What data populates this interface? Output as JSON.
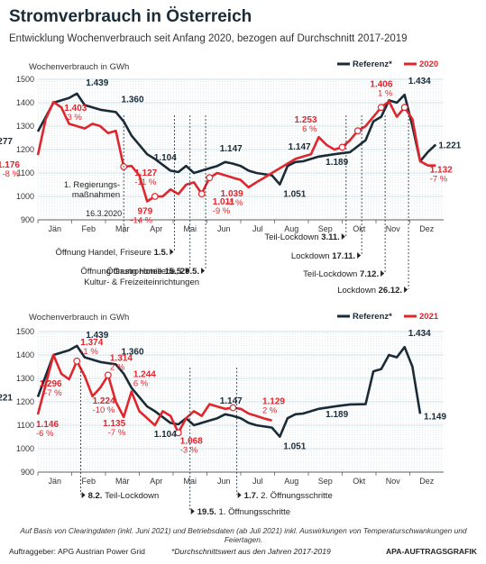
{
  "title": "Stromverbrauch in Österreich",
  "subtitle": "Entwicklung Wochenverbrauch seit Anfang 2020, bezogen auf Durchschnitt 2017-2019",
  "colors": {
    "reference": "#1a2b38",
    "actual": "#e0262d",
    "grid": "#c8dde6",
    "event": "#1a2b38"
  },
  "footer": {
    "note": "Auf Basis von Clearingdaten (inkl. Juni 2021) und Betriebsdaten (ab Juli 2021) inkl. Auswirkungen von Temperaturschwankungen und Feiertagen.",
    "client": "Auftraggeber: APG Austrian Power Grid",
    "reference_note": "*Durchschnittswert aus den Jahren 2017-2019",
    "agency": "APA-AUFTRAGSGRAFIK"
  },
  "chart_data": [
    {
      "type": "line",
      "ylabel": "Wochenverbrauch in GWh",
      "ylim": [
        900,
        1500
      ],
      "yticks": [
        900,
        1000,
        1100,
        1200,
        1300,
        1400,
        1500
      ],
      "xlim": [
        0,
        52
      ],
      "categories": [
        "Jän",
        "Feb",
        "Mär",
        "Apr",
        "Mai",
        "Jun",
        "Jul",
        "Aug",
        "Sep",
        "Okt",
        "Nov",
        "Dez"
      ],
      "grid": true,
      "legend_position": "top-right",
      "series": [
        {
          "name": "Referenz*",
          "x": [
            0,
            2,
            4,
            5,
            6,
            8,
            10,
            11,
            12,
            14,
            15,
            17,
            18,
            19,
            20,
            21,
            22,
            23,
            24,
            25,
            26,
            27,
            28,
            30,
            31,
            32,
            33,
            34,
            35,
            36,
            38,
            40,
            42,
            43,
            44,
            45,
            46,
            47,
            48,
            49,
            50,
            51
          ],
          "values": [
            1277,
            1400,
            1420,
            1439,
            1390,
            1370,
            1360,
            1320,
            1260,
            1180,
            1160,
            1110,
            1104,
            1130,
            1100,
            1110,
            1120,
            1130,
            1147,
            1140,
            1130,
            1110,
            1100,
            1090,
            1051,
            1130,
            1147,
            1150,
            1160,
            1170,
            1180,
            1189,
            1240,
            1320,
            1340,
            1410,
            1400,
            1434,
            1300,
            1150,
            1190,
            1221
          ]
        },
        {
          "name": "2020",
          "x": [
            0,
            1,
            2,
            3,
            4,
            5,
            6,
            7,
            8,
            9,
            10,
            11,
            12,
            13,
            14,
            15,
            16,
            17,
            18,
            19,
            20,
            21,
            22,
            23,
            24,
            25,
            26,
            27,
            28,
            29,
            30,
            31,
            32,
            33,
            34,
            35,
            36,
            37,
            38,
            39,
            40,
            41,
            42,
            43,
            44,
            45,
            46,
            47,
            48,
            49,
            50,
            51
          ],
          "values": [
            1176,
            1330,
            1403,
            1380,
            1310,
            1300,
            1290,
            1310,
            1300,
            1270,
            1280,
            1127,
            1130,
            1090,
            979,
            1000,
            1000,
            1030,
            1010,
            1050,
            1060,
            1011,
            1080,
            1100,
            1090,
            1080,
            1070,
            1039,
            1060,
            1080,
            1100,
            1120,
            1140,
            1160,
            1170,
            1180,
            1253,
            1220,
            1200,
            1210,
            1240,
            1280,
            1300,
            1340,
            1380,
            1406,
            1340,
            1380,
            1330,
            1150,
            1132,
            1132
          ]
        }
      ],
      "value_labels": [
        {
          "series": "Referenz*",
          "text": "1.277"
        },
        {
          "series": "Referenz*",
          "text": "1.439"
        },
        {
          "series": "Referenz*",
          "text": "1.360"
        },
        {
          "series": "Referenz*",
          "text": "1.104"
        },
        {
          "series": "Referenz*",
          "text": "1.147"
        },
        {
          "series": "Referenz*",
          "text": "1.147"
        },
        {
          "series": "Referenz*",
          "text": "1.051"
        },
        {
          "series": "Referenz*",
          "text": "1.189"
        },
        {
          "series": "Referenz*",
          "text": "1.434"
        },
        {
          "series": "Referenz*",
          "text": "1.221"
        },
        {
          "series": "2020",
          "text": "1.176",
          "pct": "-8 %"
        },
        {
          "series": "2020",
          "text": "1.403",
          "pct": "-3 %"
        },
        {
          "series": "2020",
          "text": "1.127",
          "pct": "-11 %"
        },
        {
          "series": "2020",
          "text": "979",
          "pct": "-14 %"
        },
        {
          "series": "2020",
          "text": "1.011",
          "pct": "-9 %"
        },
        {
          "series": "2020",
          "text": "1.039",
          "pct": "-4 %"
        },
        {
          "series": "2020",
          "text": "1.253",
          "pct": "6 %"
        },
        {
          "series": "2020",
          "text": "1.406",
          "pct": "1 %"
        },
        {
          "series": "2020",
          "text": "1.132",
          "pct": "-7 %"
        }
      ],
      "annotations": [
        {
          "text": "1. Regierungs-",
          "text2": "maßnahmen",
          "date": "16.3.2020",
          "x": 11
        },
        {
          "text": "Öffnung Handel, Friseure",
          "date": "1.5.",
          "x": 17.5
        },
        {
          "text": "Öffnung Gastronomie",
          "date": "15.5.",
          "x": 19.5
        },
        {
          "text": "Öffnung Hotellerie,",
          "date": "29.5.",
          "text2": "Kultur- & Freizeiteinrichtungen",
          "x": 21.5
        },
        {
          "text": "Teil-Lockdown",
          "date": "3.11.",
          "x": 39.5
        },
        {
          "text": "Lockdown",
          "date": "17.11.",
          "x": 41.5
        },
        {
          "text": "Teil-Lockdown",
          "date": "7.12.",
          "x": 44.5
        },
        {
          "text": "Lockdown",
          "date": "26.12.",
          "x": 47.5
        }
      ]
    },
    {
      "type": "line",
      "ylabel": "Wochenverbrauch in GWh",
      "ylim": [
        900,
        1500
      ],
      "yticks": [
        900,
        1000,
        1100,
        1200,
        1300,
        1400,
        1500
      ],
      "xlim": [
        0,
        52
      ],
      "categories": [
        "Jän",
        "Feb",
        "Mär",
        "Apr",
        "Mai",
        "Jun",
        "Jul",
        "Aug",
        "Sep",
        "Okt",
        "Nov",
        "Dez"
      ],
      "grid": true,
      "legend_position": "top-right",
      "series": [
        {
          "name": "Referenz*",
          "x": [
            0,
            2,
            4,
            5,
            6,
            8,
            10,
            11,
            12,
            14,
            15,
            17,
            18,
            19,
            20,
            21,
            22,
            23,
            24,
            25,
            26,
            27,
            28,
            30,
            31,
            32,
            33,
            34,
            35,
            36,
            38,
            40,
            42,
            43,
            44,
            45,
            46,
            47,
            48,
            49
          ],
          "values": [
            1221,
            1400,
            1420,
            1439,
            1390,
            1370,
            1360,
            1320,
            1260,
            1180,
            1160,
            1110,
            1104,
            1130,
            1100,
            1110,
            1120,
            1130,
            1147,
            1140,
            1130,
            1110,
            1100,
            1090,
            1051,
            1130,
            1147,
            1150,
            1160,
            1170,
            1180,
            1189,
            1190,
            1330,
            1340,
            1400,
            1390,
            1434,
            1350,
            1149
          ]
        },
        {
          "name": "2021",
          "x": [
            0,
            2,
            3,
            4,
            5,
            6,
            7,
            8,
            9,
            10,
            11,
            12,
            13,
            14,
            15,
            16,
            17,
            18,
            19,
            20,
            21,
            22,
            23,
            24,
            25,
            26,
            27,
            28,
            29,
            30
          ],
          "values": [
            1146,
            1400,
            1320,
            1296,
            1374,
            1310,
            1224,
            1260,
            1314,
            1200,
            1135,
            1244,
            1160,
            1130,
            1100,
            1160,
            1140,
            1068,
            1130,
            1160,
            1140,
            1190,
            1180,
            1170,
            1175,
            1170,
            1150,
            1140,
            1129,
            1120
          ]
        }
      ],
      "value_labels": [
        {
          "series": "Referenz*",
          "text": "1.221"
        },
        {
          "series": "Referenz*",
          "text": "1.439"
        },
        {
          "series": "Referenz*",
          "text": "1.360"
        },
        {
          "series": "Referenz*",
          "text": "1.104"
        },
        {
          "series": "Referenz*",
          "text": "1.147"
        },
        {
          "series": "Referenz*",
          "text": "1.051"
        },
        {
          "series": "Referenz*",
          "text": "1.189"
        },
        {
          "series": "Referenz*",
          "text": "1.434"
        },
        {
          "series": "Referenz*",
          "text": "1.149"
        },
        {
          "series": "2021",
          "text": "1.146",
          "pct": "-6 %"
        },
        {
          "series": "2021",
          "text": "1.296",
          "pct": "-7 %"
        },
        {
          "series": "2021",
          "text": "1.374",
          "pct": "-1 %"
        },
        {
          "series": "2021",
          "text": "1.224",
          "pct": "-10 %"
        },
        {
          "series": "2021",
          "text": "1.314",
          "pct": "2 %"
        },
        {
          "series": "2021",
          "text": "1.135",
          "pct": "-7 %"
        },
        {
          "series": "2021",
          "text": "1.244",
          "pct": "6 %"
        },
        {
          "series": "2021",
          "text": "1.068",
          "pct": "-3 %"
        },
        {
          "series": "2021",
          "text": "1.129",
          "pct": "2 %"
        }
      ],
      "annotations": [
        {
          "date": "8.2.",
          "text": "Teil-Lockdown",
          "x": 5.5
        },
        {
          "date": "19.5.",
          "text": "1. Öffnungsschritte",
          "x": 19.5
        },
        {
          "date": "1.7.",
          "text": "2. Öffnungsschritte",
          "x": 25.5
        }
      ]
    }
  ]
}
